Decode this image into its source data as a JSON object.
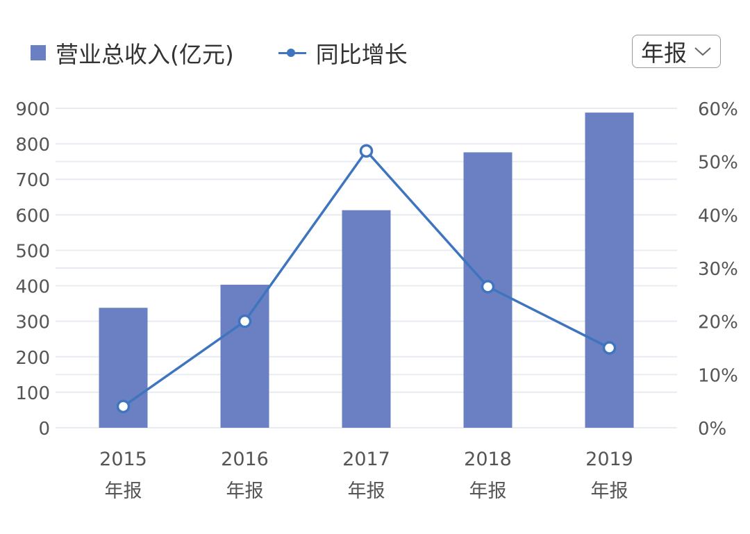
{
  "legend": {
    "bar_label": "营业总收入(亿元)",
    "line_label": "同比增长"
  },
  "period_select": {
    "value": "年报",
    "icon": "chevron-down-icon"
  },
  "colors": {
    "bar": "#6a80c2",
    "line": "#3f74bf",
    "grid": "#e8ecf2",
    "axis_text": "#555555"
  },
  "chart_data": {
    "type": "bar",
    "categories": [
      "2015 年报",
      "2016 年报",
      "2017 年报",
      "2018 年报",
      "2019 年报"
    ],
    "category_lines": [
      [
        "2015",
        "年报"
      ],
      [
        "2016",
        "年报"
      ],
      [
        "2017",
        "年报"
      ],
      [
        "2018",
        "年报"
      ],
      [
        "2019",
        "年报"
      ]
    ],
    "series": [
      {
        "name": "营业总收入(亿元)",
        "type": "bar",
        "axis": "left",
        "values": [
          338,
          403,
          613,
          776,
          888
        ]
      },
      {
        "name": "同比增长",
        "type": "line",
        "axis": "right",
        "values": [
          4,
          20,
          52,
          26.5,
          15
        ]
      }
    ],
    "y_left": {
      "min": 0,
      "max": 900,
      "ticks": [
        "0",
        "100",
        "200",
        "300",
        "400",
        "500",
        "600",
        "700",
        "800",
        "900"
      ]
    },
    "y_right": {
      "min": 0,
      "max": 60,
      "ticks": [
        "0%",
        "10%",
        "20%",
        "30%",
        "40%",
        "50%",
        "60%"
      ]
    },
    "grid": true,
    "legend_position": "top-left"
  }
}
